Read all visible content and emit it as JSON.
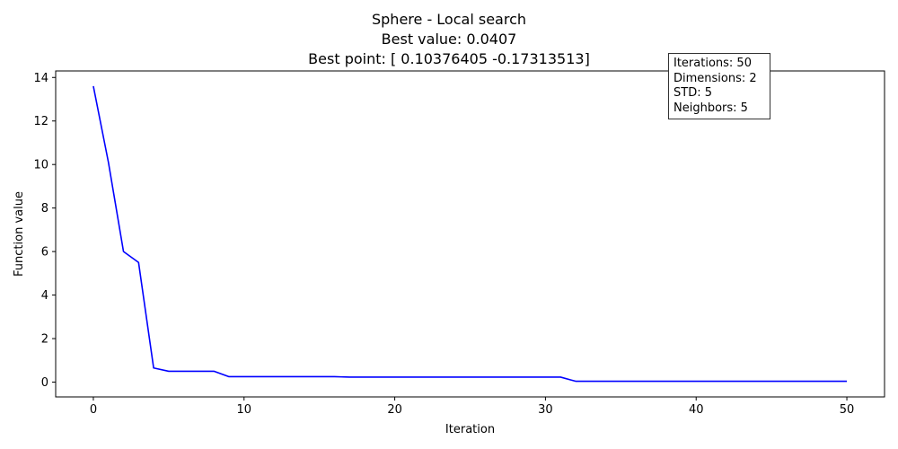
{
  "chart_data": {
    "type": "line",
    "title": [
      "Sphere - Local search",
      "Best value: 0.0407",
      "Best point: [ 0.10376405 -0.17313513]"
    ],
    "xlabel": "Iteration",
    "ylabel": "Function value",
    "xlim": [
      -2.5,
      52.5
    ],
    "ylim": [
      -0.68,
      14.3
    ],
    "xticks": [
      0,
      10,
      20,
      30,
      40,
      50
    ],
    "yticks": [
      0,
      2,
      4,
      6,
      8,
      10,
      12,
      14
    ],
    "grid": false,
    "series": [
      {
        "color": "#0000ff",
        "x": [
          0,
          1,
          2,
          3,
          4,
          5,
          6,
          7,
          8,
          9,
          10,
          11,
          12,
          13,
          14,
          15,
          16,
          17,
          18,
          19,
          20,
          21,
          22,
          23,
          24,
          25,
          26,
          27,
          28,
          29,
          30,
          31,
          32,
          33,
          34,
          35,
          36,
          37,
          38,
          39,
          40,
          41,
          42,
          43,
          44,
          45,
          46,
          47,
          48,
          49,
          50
        ],
        "y": [
          13.6,
          10.1,
          6.0,
          5.5,
          0.65,
          0.5,
          0.5,
          0.5,
          0.5,
          0.25,
          0.25,
          0.25,
          0.25,
          0.25,
          0.25,
          0.25,
          0.25,
          0.23,
          0.23,
          0.23,
          0.23,
          0.23,
          0.23,
          0.23,
          0.23,
          0.23,
          0.23,
          0.23,
          0.23,
          0.23,
          0.23,
          0.23,
          0.0407,
          0.0407,
          0.0407,
          0.0407,
          0.0407,
          0.0407,
          0.0407,
          0.0407,
          0.0407,
          0.0407,
          0.0407,
          0.0407,
          0.0407,
          0.0407,
          0.0407,
          0.0407,
          0.0407,
          0.0407,
          0.0407
        ]
      }
    ],
    "annotation_box": {
      "position": "top-right",
      "lines": [
        "Iterations: 50",
        "Dimensions: 2",
        "STD: 5",
        "Neighbors: 5"
      ]
    }
  }
}
